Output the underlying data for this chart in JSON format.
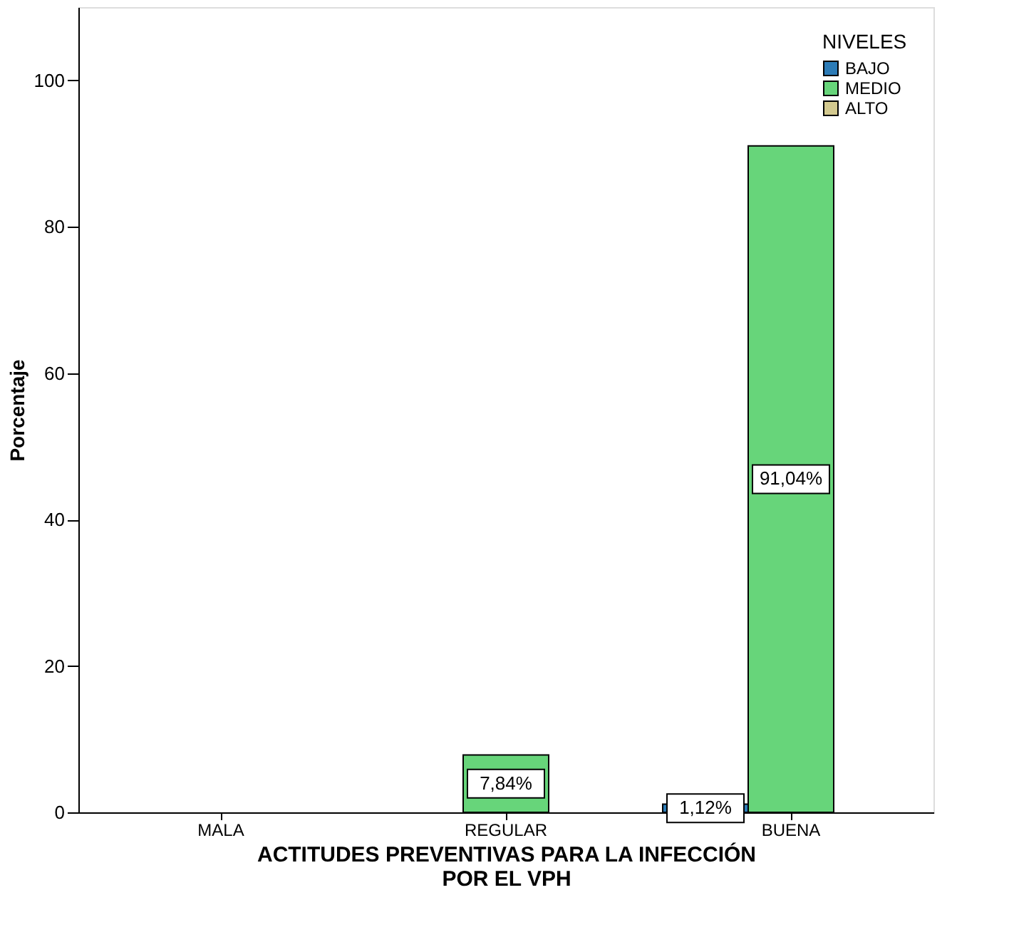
{
  "chart_data": {
    "type": "bar",
    "xlabel": "ACTITUDES PREVENTIVAS PARA LA INFECCIÓN POR EL VPH",
    "ylabel": "Porcentaje",
    "legend_title": "NIVELES",
    "categories": [
      "MALA",
      "REGULAR",
      "BUENA"
    ],
    "series": [
      {
        "name": "BAJO",
        "color": "#2c7bb6",
        "values": [
          null,
          null,
          1.12
        ],
        "value_labels": [
          null,
          null,
          "1,12%"
        ]
      },
      {
        "name": "MEDIO",
        "color": "#67d57a",
        "values": [
          null,
          7.84,
          91.04
        ],
        "value_labels": [
          null,
          "7,84%",
          "91,04%"
        ]
      },
      {
        "name": "ALTO",
        "color": "#d3c98f",
        "values": [
          null,
          null,
          null
        ],
        "value_labels": [
          null,
          null,
          null
        ]
      }
    ],
    "ylim": [
      0,
      110
    ],
    "yticks": [
      0,
      20,
      40,
      60,
      80,
      100
    ],
    "grid": false,
    "legend": "top right"
  }
}
